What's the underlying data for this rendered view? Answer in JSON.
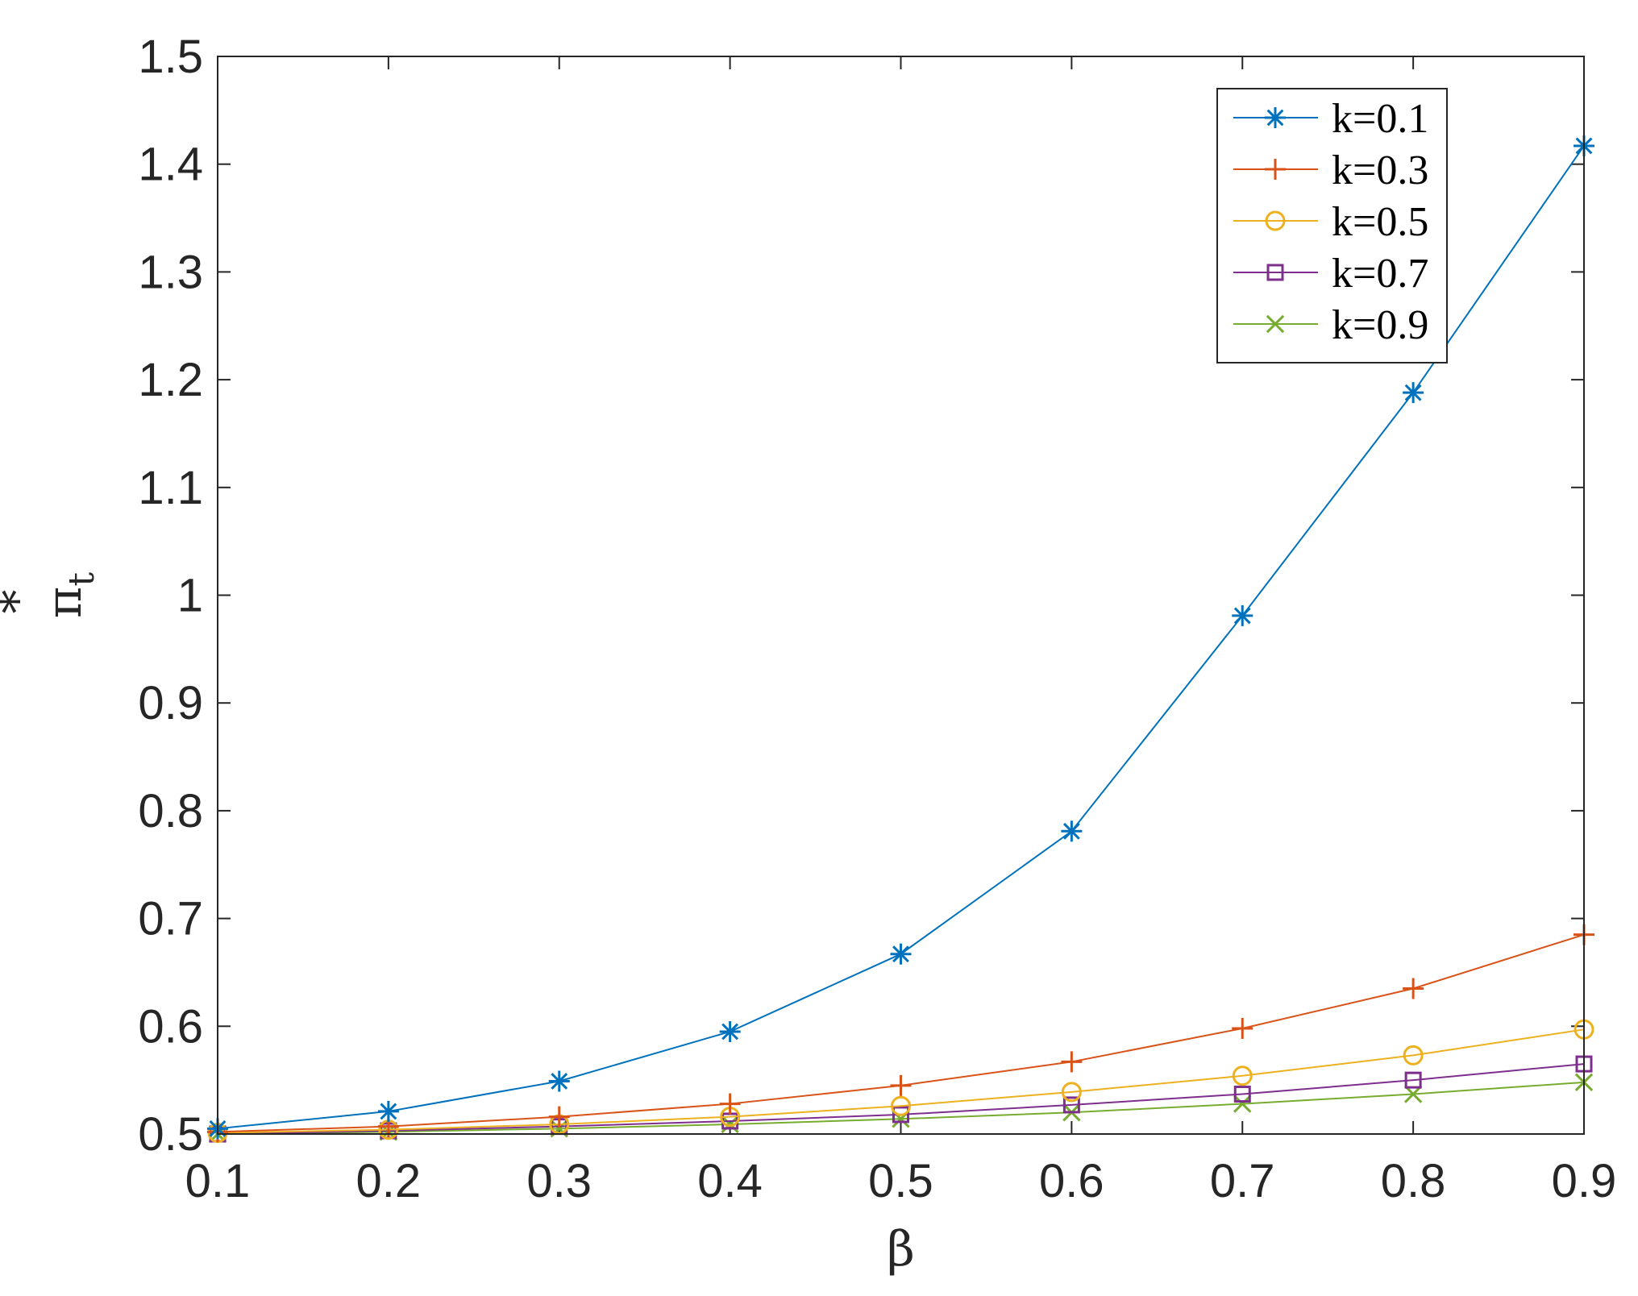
{
  "chart_data": {
    "type": "line",
    "xlabel": "β",
    "ylabel": {
      "base": "π",
      "sup": "*",
      "sub": "t"
    },
    "xlim": [
      0.1,
      0.9
    ],
    "ylim": [
      0.5,
      1.5
    ],
    "x": [
      0.1,
      0.2,
      0.3,
      0.4,
      0.5,
      0.6,
      0.7,
      0.8,
      0.9
    ],
    "x_ticks": [
      "0.1",
      "0.2",
      "0.3",
      "0.4",
      "0.5",
      "0.6",
      "0.7",
      "0.8",
      "0.9"
    ],
    "y_ticks": [
      "0.5",
      "0.6",
      "0.7",
      "0.8",
      "0.9",
      "1",
      "1.1",
      "1.2",
      "1.3",
      "1.4",
      "1.5"
    ],
    "grid": false,
    "legend_position": "top-right",
    "series": [
      {
        "name": "k=0.1",
        "marker": "asterisk",
        "color": "#0072BD",
        "values": [
          0.505,
          0.521,
          0.549,
          0.595,
          0.667,
          0.781,
          0.981,
          1.188,
          1.417
        ]
      },
      {
        "name": "k=0.3",
        "marker": "plus",
        "color": "#D95319",
        "values": [
          0.502,
          0.507,
          0.516,
          0.528,
          0.545,
          0.567,
          0.598,
          0.635,
          0.685
        ]
      },
      {
        "name": "k=0.5",
        "marker": "circle",
        "color": "#EDB120",
        "values": [
          0.501,
          0.504,
          0.509,
          0.516,
          0.526,
          0.539,
          0.554,
          0.573,
          0.597
        ]
      },
      {
        "name": "k=0.7",
        "marker": "square",
        "color": "#7E2F8E",
        "values": [
          0.5,
          0.503,
          0.507,
          0.512,
          0.518,
          0.527,
          0.537,
          0.55,
          0.565
        ]
      },
      {
        "name": "k=0.9",
        "marker": "x",
        "color": "#77AC30",
        "values": [
          0.5,
          0.502,
          0.505,
          0.509,
          0.514,
          0.52,
          0.528,
          0.537,
          0.548
        ]
      }
    ]
  }
}
